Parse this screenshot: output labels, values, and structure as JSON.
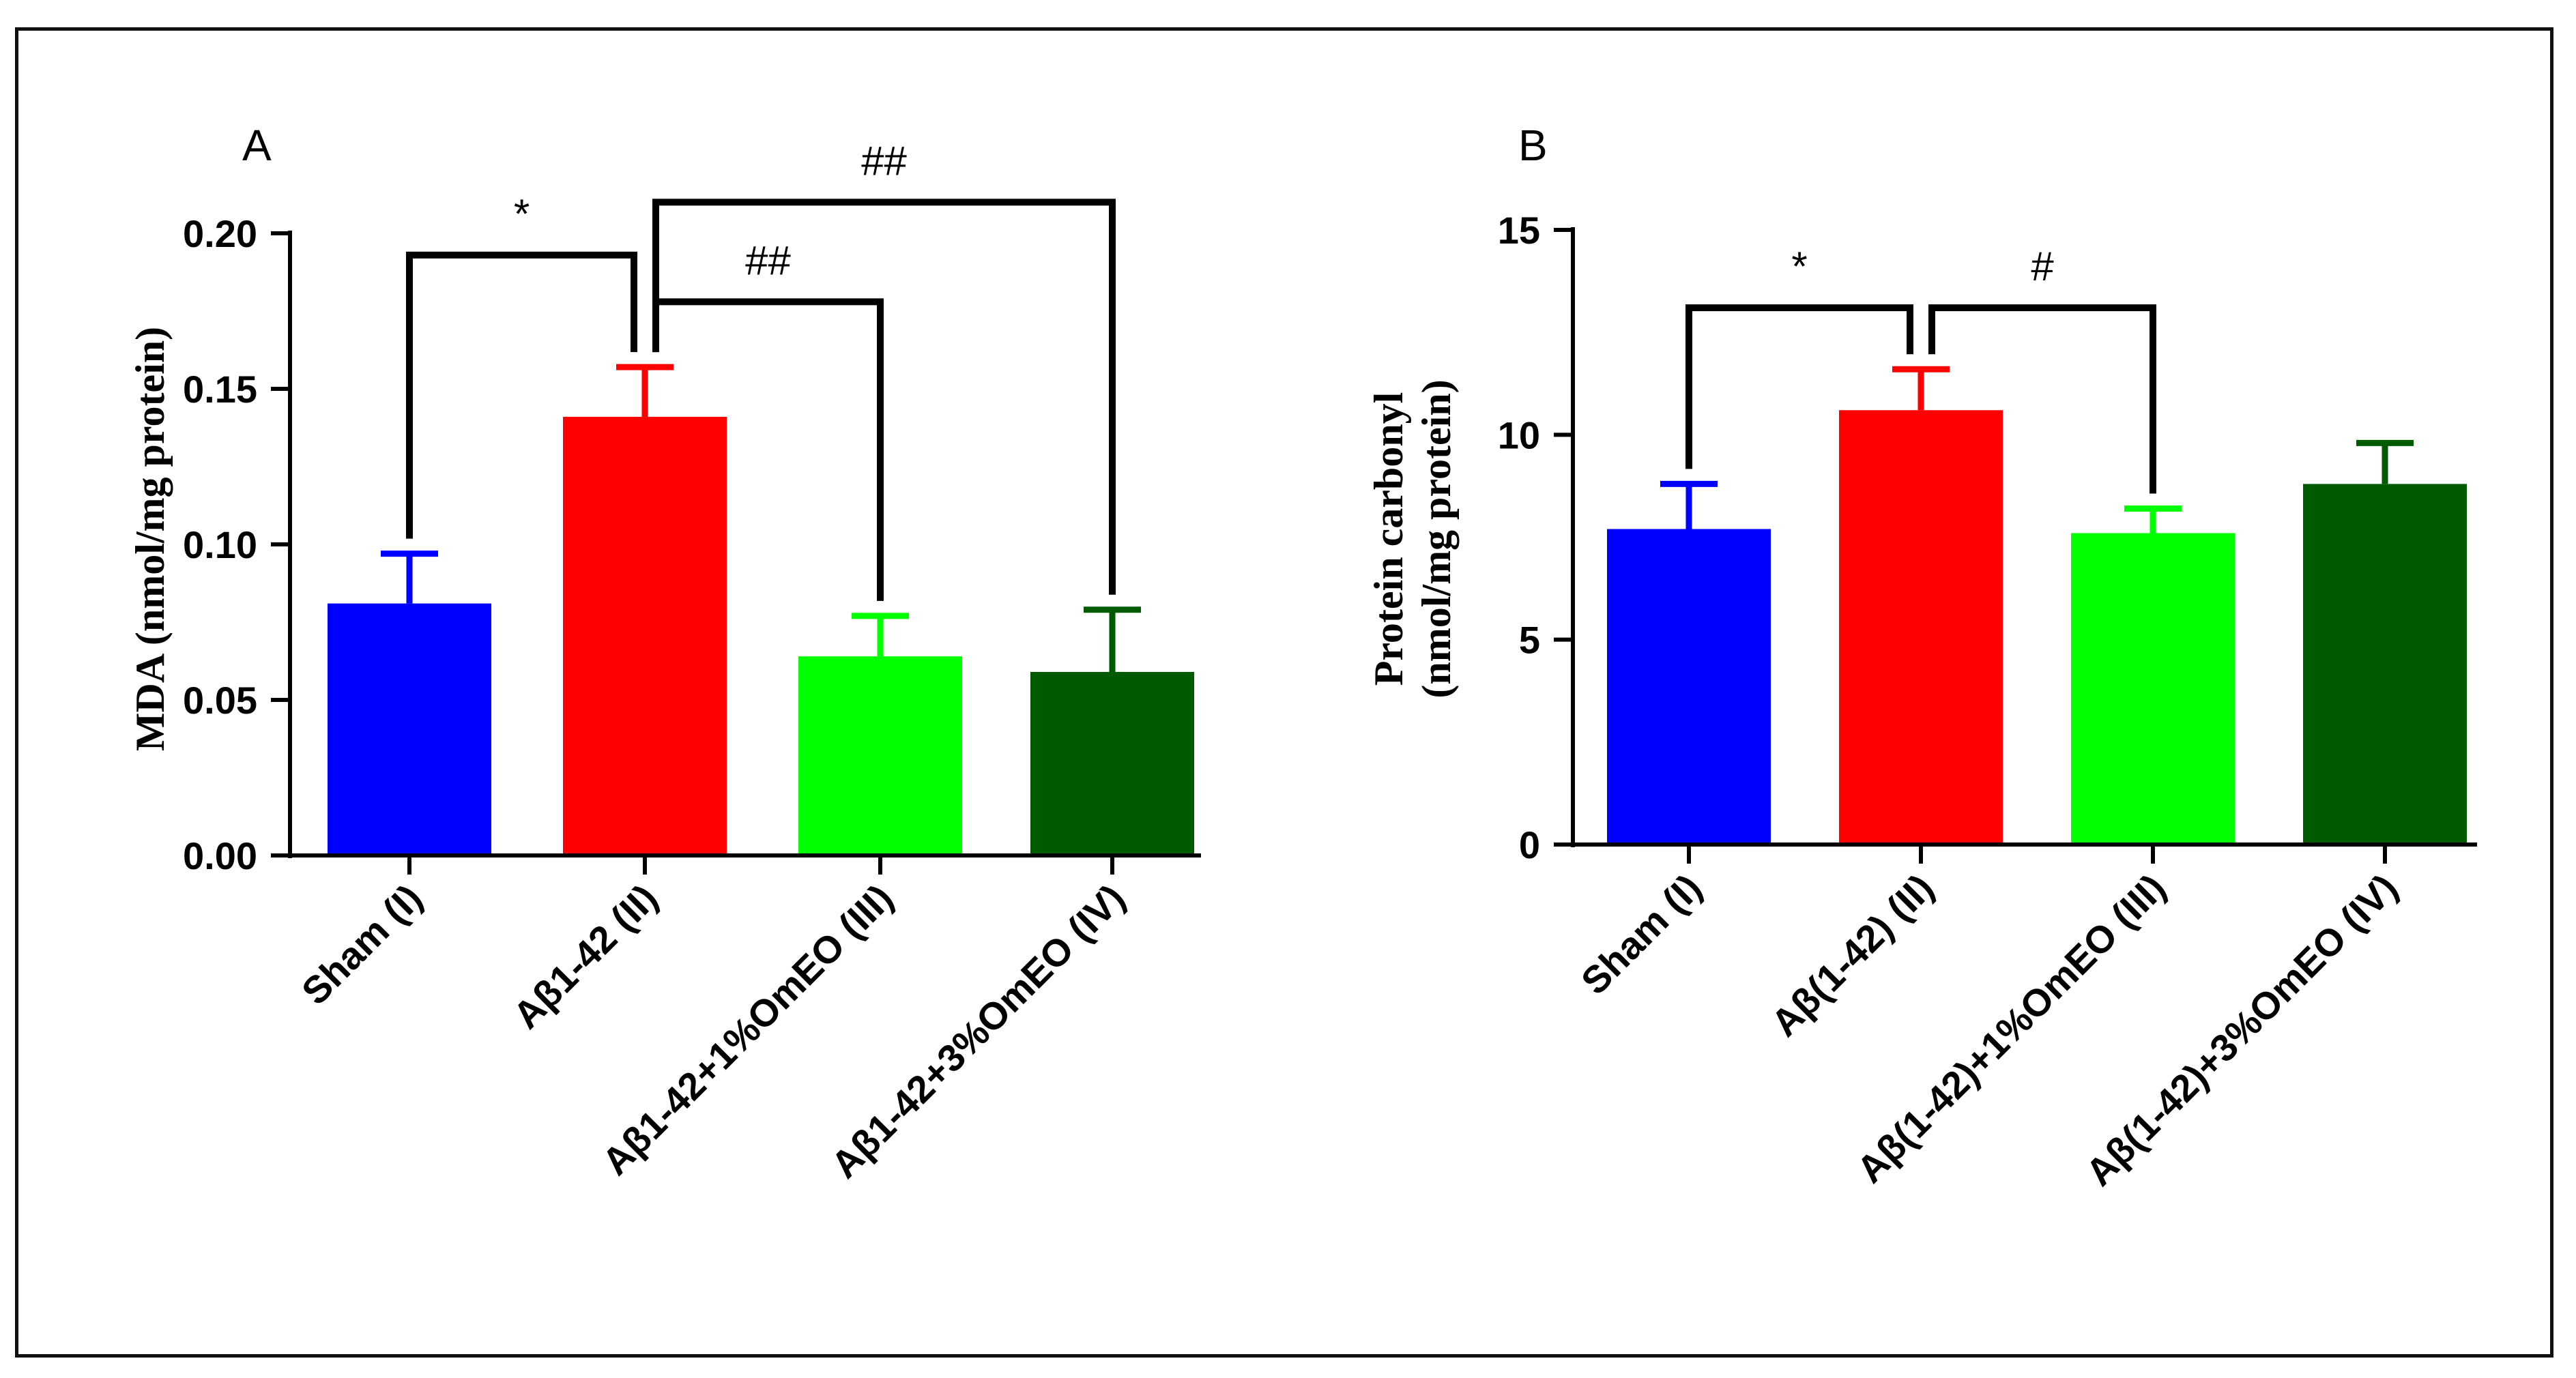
{
  "chart_data": [
    {
      "type": "bar",
      "panel_label": "A",
      "ylabel": "MDA (nmol/mg protein)",
      "ylim": [
        0,
        0.2
      ],
      "yticks": [
        0.0,
        0.05,
        0.1,
        0.15,
        0.2
      ],
      "ytick_labels": [
        "0.00",
        "0.05",
        "0.10",
        "0.15",
        "0.20"
      ],
      "categories": [
        "Sham (I)",
        "Aβ1-42 (II)",
        "Aβ1-42+1%OmEO (III)",
        "Aβ1-42+3%OmEO (IV)"
      ],
      "values": [
        0.081,
        0.141,
        0.064,
        0.059
      ],
      "errors": [
        0.016,
        0.016,
        0.013,
        0.02
      ],
      "colors": [
        "#0000ff",
        "#ff0000",
        "#00ff00",
        "#005a00"
      ],
      "significance": [
        {
          "from": 0,
          "to": 1,
          "label": "*",
          "y": 0.193
        },
        {
          "from": 1,
          "to": 2,
          "label": "##",
          "y": 0.178
        },
        {
          "from": 1,
          "to": 3,
          "label": "##",
          "y": 0.21
        }
      ]
    },
    {
      "type": "bar",
      "panel_label": "B",
      "ylabel_lines": [
        "Protein carbonyl",
        "(nmol/mg protein)"
      ],
      "ylim": [
        0,
        15
      ],
      "yticks": [
        0,
        5,
        10,
        15
      ],
      "ytick_labels": [
        "0",
        "5",
        "10",
        "15"
      ],
      "categories": [
        "Sham (I)",
        "Aβ(1-42) (II)",
        "Aβ(1-42)+1%OmEO (III)",
        "Aβ(1-42)+3%OmEO (IV)"
      ],
      "values": [
        7.7,
        10.6,
        7.6,
        8.8
      ],
      "errors": [
        1.1,
        1.0,
        0.6,
        1.0
      ],
      "colors": [
        "#0000ff",
        "#ff0000",
        "#00ff00",
        "#005a00"
      ],
      "significance": [
        {
          "from": 0,
          "to": 1,
          "label": "*",
          "y": 13.1
        },
        {
          "from": 1,
          "to": 2,
          "label": "#",
          "y": 13.1
        }
      ]
    }
  ]
}
